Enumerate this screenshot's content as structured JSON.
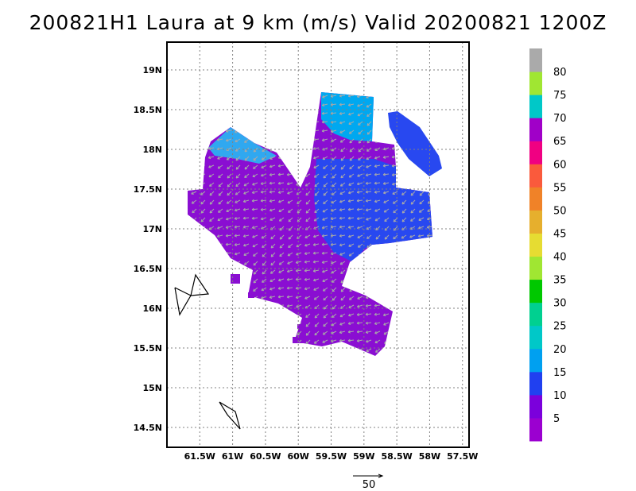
{
  "title": "200821H1 Laura at 9 km (m/s) Valid 20200821  1200Z",
  "map": {
    "lon_range": [
      -62.0,
      -57.4
    ],
    "lat_range": [
      14.25,
      19.35
    ],
    "lat_ticks": [
      {
        "value": 19.0,
        "label": "19N"
      },
      {
        "value": 18.5,
        "label": "18.5N"
      },
      {
        "value": 18.0,
        "label": "18N"
      },
      {
        "value": 17.5,
        "label": "17.5N"
      },
      {
        "value": 17.0,
        "label": "17N"
      },
      {
        "value": 16.5,
        "label": "16.5N"
      },
      {
        "value": 16.0,
        "label": "16N"
      },
      {
        "value": 15.5,
        "label": "15.5N"
      },
      {
        "value": 15.0,
        "label": "15N"
      },
      {
        "value": 14.5,
        "label": "14.5N"
      }
    ],
    "lon_ticks": [
      {
        "value": -61.5,
        "label": "61.5W"
      },
      {
        "value": -61.0,
        "label": "61W"
      },
      {
        "value": -60.5,
        "label": "60.5W"
      },
      {
        "value": -60.0,
        "label": "60W"
      },
      {
        "value": -59.5,
        "label": "59.5W"
      },
      {
        "value": -59.0,
        "label": "59W"
      },
      {
        "value": -58.5,
        "label": "58.5W"
      },
      {
        "value": -58.0,
        "label": "58W"
      },
      {
        "value": -57.5,
        "label": "57.5W"
      }
    ],
    "grid": true,
    "coastline_color": "#000000",
    "vector_color": "#a8a8a8"
  },
  "colorbar": {
    "bins": [
      {
        "color": "#9b00d0"
      },
      {
        "color": "#7b00dc"
      },
      {
        "color": "#2040f0"
      },
      {
        "color": "#00a0f0"
      },
      {
        "color": "#00c8c8"
      },
      {
        "color": "#00d090"
      },
      {
        "color": "#00c800"
      },
      {
        "color": "#a0e632"
      },
      {
        "color": "#e6dc32"
      },
      {
        "color": "#e6af2d"
      },
      {
        "color": "#f08228"
      },
      {
        "color": "#fa5a3c"
      },
      {
        "color": "#f00082"
      },
      {
        "color": "#a000c8"
      },
      {
        "color": "#00c8c8"
      },
      {
        "color": "#a0e632"
      },
      {
        "color": "#aaaaaa"
      }
    ],
    "labels": [
      "5",
      "10",
      "15",
      "20",
      "25",
      "30",
      "35",
      "40",
      "45",
      "50",
      "55",
      "60",
      "65",
      "70",
      "75",
      "80"
    ]
  },
  "reference_vector": {
    "label": "50"
  }
}
